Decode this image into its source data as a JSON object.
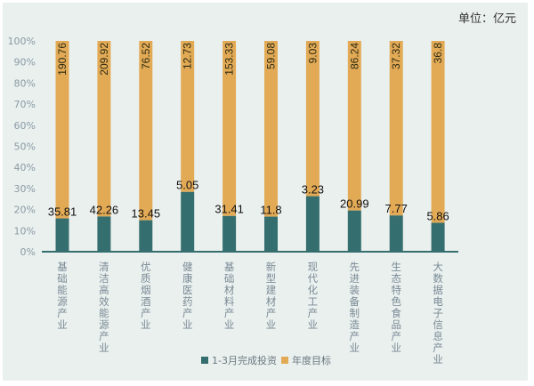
{
  "chart_data": {
    "type": "bar",
    "stacked": "percent",
    "unit_label": "单位：亿元",
    "categories": [
      "基础能源产业",
      "清洁高效能源产业",
      "优质烟酒产业",
      "健康医药产业",
      "基础材料产业",
      "新型建材产业",
      "现代化工产业",
      "先进装备制造产业",
      "生态特色食品产业",
      "大数据电子信息产业"
    ],
    "series": [
      {
        "name": "1-3月完成投资",
        "color": "#356E6E",
        "values": [
          35.81,
          42.26,
          13.45,
          5.05,
          31.41,
          11.8,
          3.23,
          20.99,
          7.77,
          5.86
        ],
        "labels": [
          "35.81",
          "42.26",
          "13.45",
          "5.05",
          "31.41",
          "11.8",
          "3.23",
          "20.99",
          "7.77",
          "5.86"
        ]
      },
      {
        "name": "年度目标",
        "color": "#E3AA56",
        "values": [
          190.76,
          209.92,
          76.52,
          12.73,
          153.33,
          59.08,
          9.03,
          86.24,
          37.32,
          36.8
        ],
        "labels": [
          "190.76",
          "209.92",
          "76.52",
          "12.73",
          "153.33",
          "59.08",
          "9.03",
          "86.24",
          "37.32",
          "36.8"
        ]
      }
    ],
    "yaxis": {
      "ticks": [
        "0%",
        "10%",
        "20%",
        "30%",
        "40%",
        "50%",
        "60%",
        "70%",
        "80%",
        "90%",
        "100%"
      ],
      "ylim": [
        0,
        100
      ]
    },
    "grid": false,
    "legend_position": "bottom",
    "title": "",
    "xlabel": "",
    "ylabel": ""
  }
}
